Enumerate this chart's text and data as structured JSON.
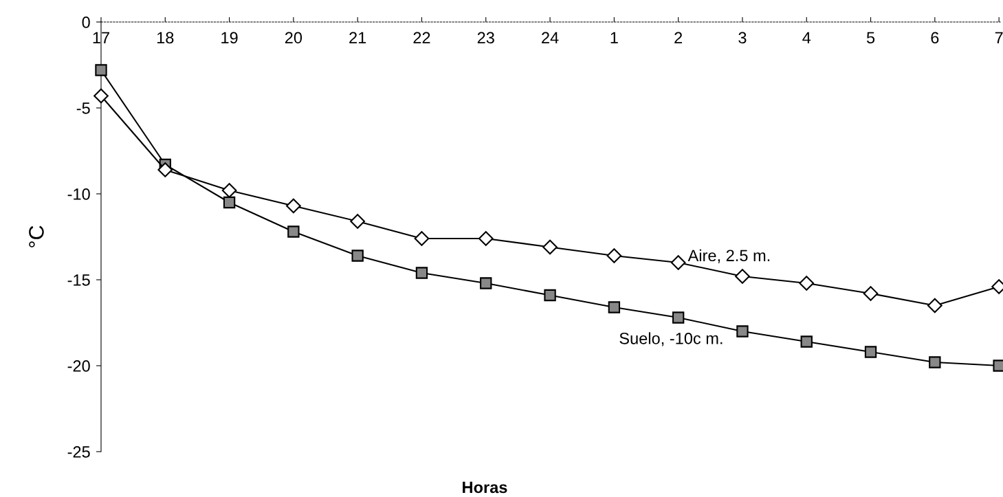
{
  "chart_data": {
    "type": "line",
    "xlabel": "Horas",
    "ylabel": "°C",
    "categories": [
      "17",
      "18",
      "19",
      "20",
      "21",
      "22",
      "23",
      "24",
      "1",
      "2",
      "3",
      "4",
      "5",
      "6",
      "7"
    ],
    "ylim": [
      -25,
      0
    ],
    "yticks": [
      -25,
      -20,
      -15,
      -10,
      -5,
      0
    ],
    "grid": false,
    "legend": false,
    "line_style": "solid",
    "series": [
      {
        "name": "Aire, 2.5 m.",
        "color": "#000000",
        "marker": "diamond",
        "values": [
          -4.3,
          -8.6,
          -9.8,
          -10.7,
          -11.6,
          -12.6,
          -12.6,
          -13.1,
          -13.6,
          -14.0,
          -14.8,
          -15.2,
          -15.8,
          -16.5,
          -15.4
        ]
      },
      {
        "name": "Suelo, -10c m.",
        "color": "#000000",
        "marker": "square",
        "values": [
          -2.8,
          -8.3,
          -10.5,
          -12.2,
          -13.6,
          -14.6,
          -15.2,
          -15.9,
          -16.6,
          -17.2,
          -18.0,
          -18.6,
          -19.2,
          -19.8,
          -20.0
        ]
      }
    ]
  }
}
